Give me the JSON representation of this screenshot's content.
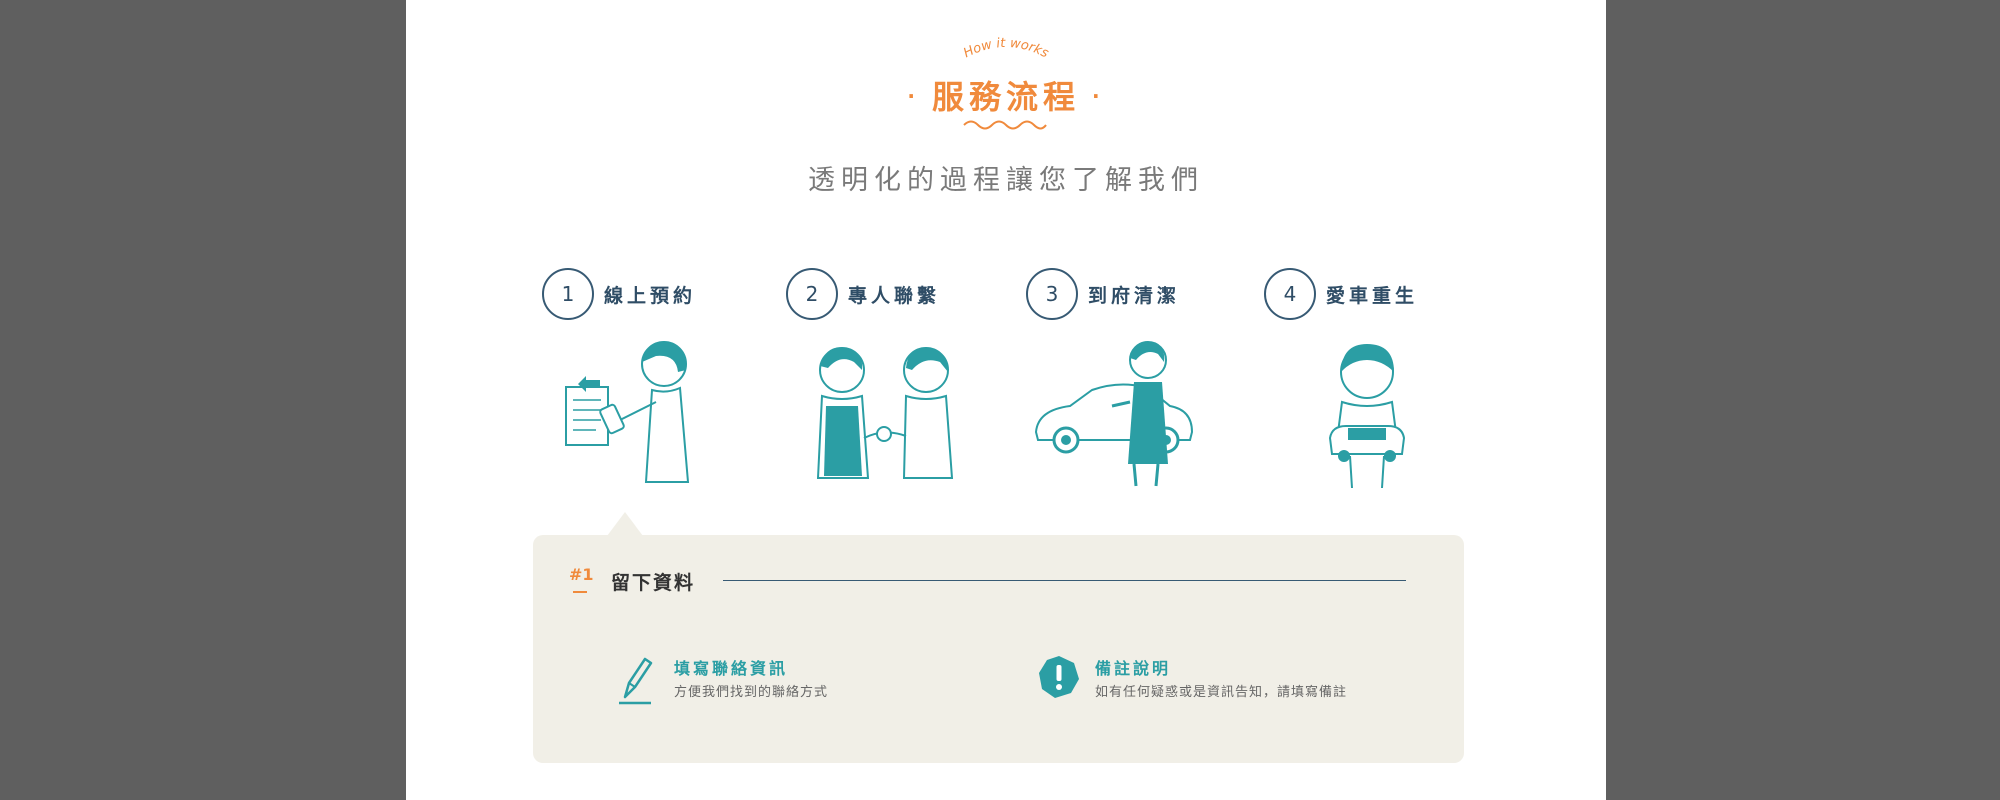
{
  "header": {
    "eyebrow": "How it works",
    "title": "服務流程",
    "dot": "·",
    "subtitle": "透明化的過程讓您了解我們"
  },
  "steps": [
    {
      "number": "1",
      "label": "線上預約"
    },
    {
      "number": "2",
      "label": "專人聯繫"
    },
    {
      "number": "3",
      "label": "到府清潔"
    },
    {
      "number": "4",
      "label": "愛車重生"
    }
  ],
  "detail": {
    "tag": "#1",
    "heading": "留下資料",
    "items": [
      {
        "icon": "pencil-icon",
        "title": "填寫聯絡資訊",
        "desc": "方便我們找到的聯絡方式"
      },
      {
        "icon": "exclamation-icon",
        "title": "備註說明",
        "desc": "如有任何疑惑或是資訊告知，請填寫備註"
      }
    ]
  },
  "colors": {
    "accent_orange": "#f08a3c",
    "teal": "#2b9ea4",
    "navy": "#2f4d66",
    "panel_bg": "#f1efe7",
    "backdrop": "#5f5f5f"
  }
}
